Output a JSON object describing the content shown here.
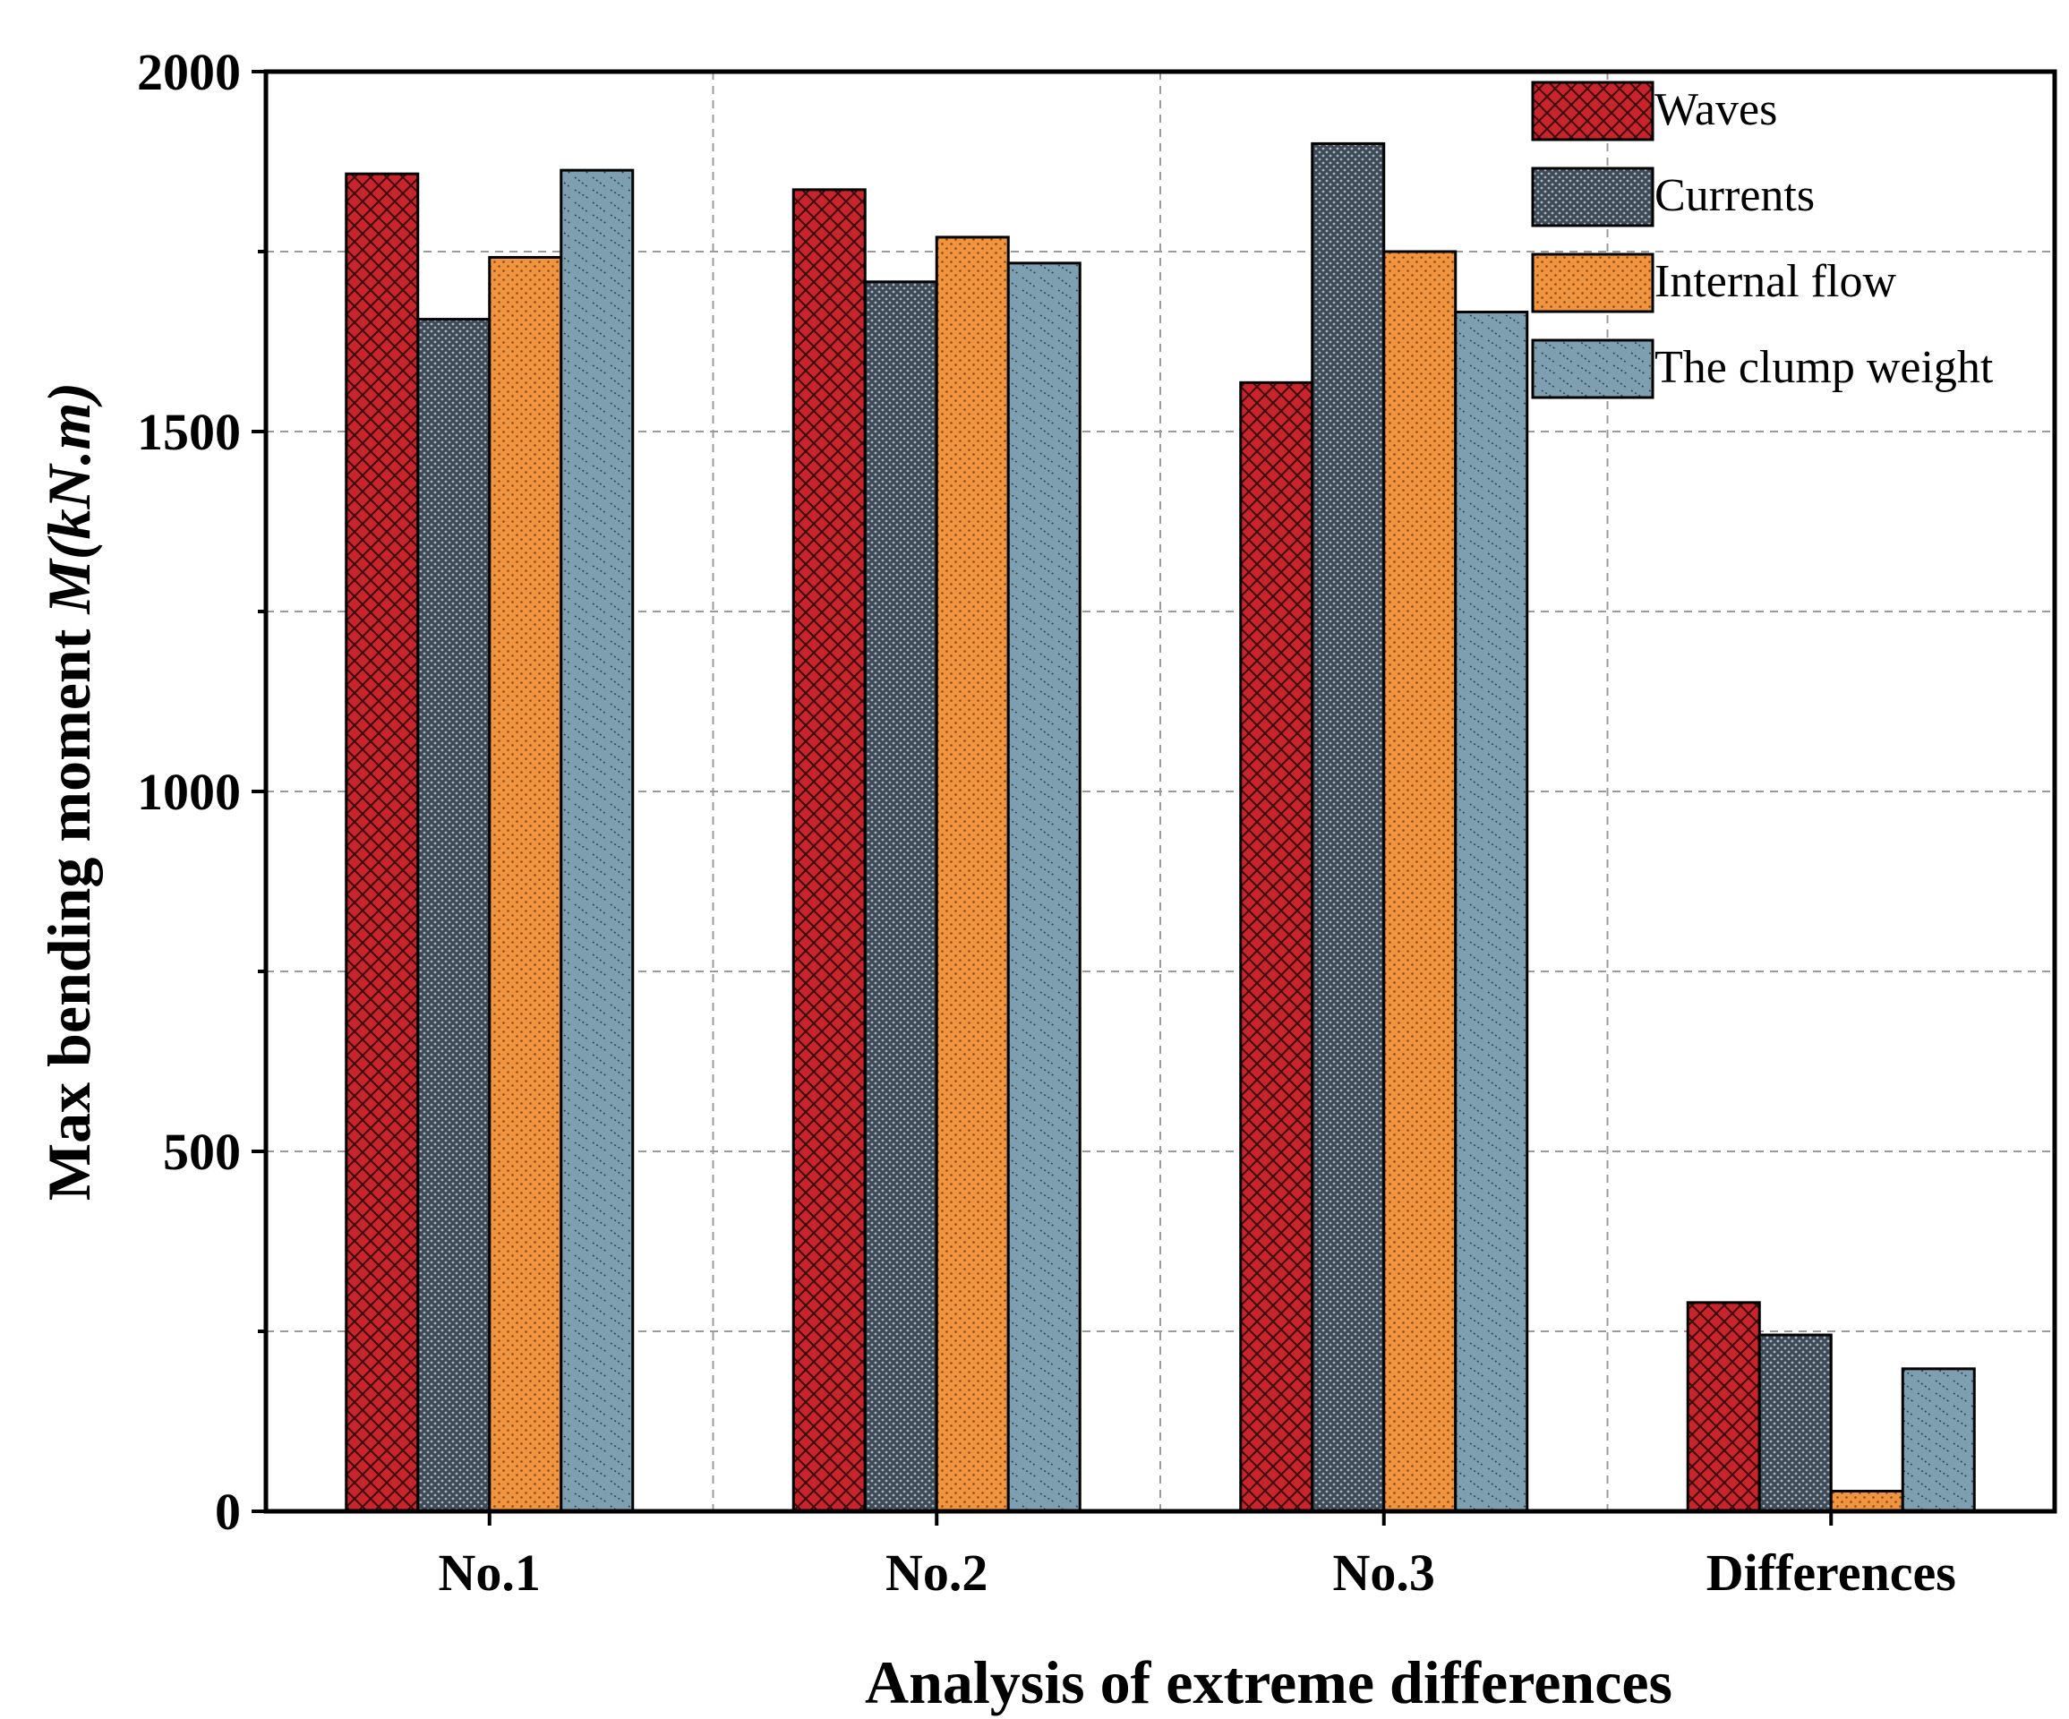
{
  "chart_data": {
    "type": "bar",
    "title": "",
    "xlabel": "Analysis of extreme differences",
    "ylabel_prefix": "Max bending moment ",
    "ylabel_unit": "M(kN.m)",
    "categories": [
      "No.1",
      "No.2",
      "No.3",
      "Differences"
    ],
    "ylim": [
      0,
      2000
    ],
    "yticks": [
      0,
      500,
      1000,
      1500,
      2000
    ],
    "grid": true,
    "legend_position": "top-right",
    "series": [
      {
        "name": "Waves",
        "color": "#c8242b",
        "pattern": "crosshatch",
        "values": [
          1858,
          1836,
          1568,
          290
        ]
      },
      {
        "name": "Currents",
        "color": "#3e4a56",
        "pattern": "fine-dots",
        "values": [
          1656,
          1708,
          1900,
          245
        ]
      },
      {
        "name": "Internal flow",
        "color": "#f0943f",
        "pattern": "dots",
        "values": [
          1742,
          1770,
          1750,
          28
        ]
      },
      {
        "name": "The clump weight",
        "color": "#7e9fb0",
        "pattern": "dashes",
        "values": [
          1863,
          1734,
          1666,
          198
        ]
      }
    ]
  }
}
